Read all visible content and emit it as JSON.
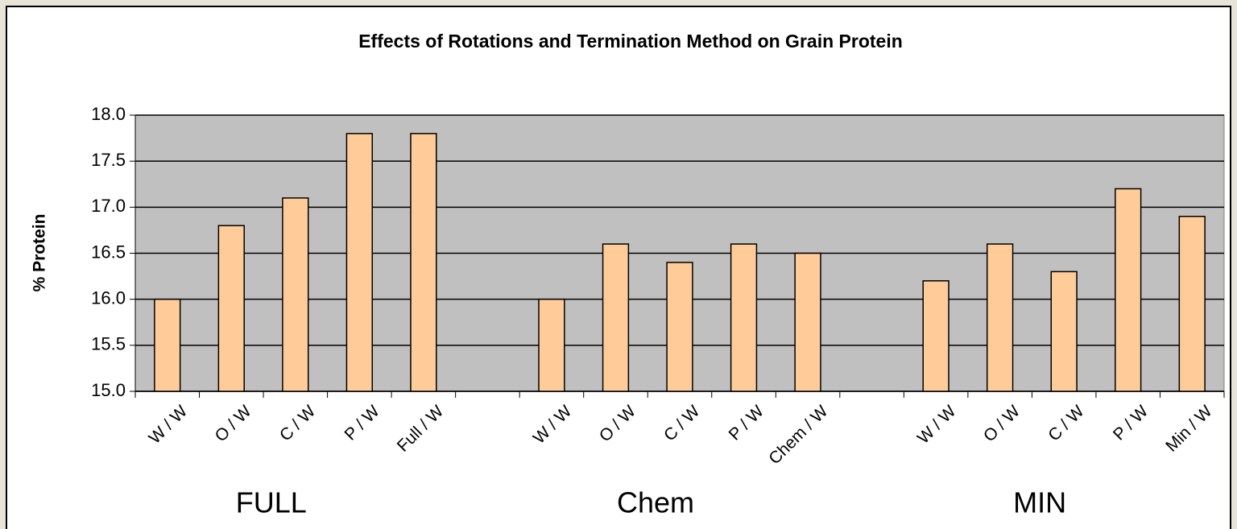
{
  "chart_data": {
    "type": "bar",
    "title": "Effects of Rotations and Termination Method on Grain Protein",
    "ylabel": "% Protein",
    "categories": [
      "W / W",
      "O / W",
      "C / W",
      "P / W",
      "Full / W",
      null,
      "W / W",
      "O / W",
      "C / W",
      "P / W",
      "Chem / W",
      null,
      "W / W",
      "O / W",
      "C / W",
      "P / W",
      "Min / W"
    ],
    "values": [
      16.0,
      16.8,
      17.1,
      17.8,
      17.8,
      null,
      16.0,
      16.6,
      16.4,
      16.6,
      16.5,
      null,
      16.2,
      16.6,
      16.3,
      17.2,
      16.9
    ],
    "groups": [
      "FULL",
      "Chem",
      "MIN"
    ],
    "color": "#ffcc99",
    "ylim": [
      15,
      18
    ],
    "yticks": [
      {
        "value": 15,
        "label": "15.0"
      },
      {
        "value": 15.5,
        "label": "15.5"
      },
      {
        "value": 16,
        "label": "16.0"
      },
      {
        "value": 16.5,
        "label": "16.5"
      },
      {
        "value": 17,
        "label": "17.0"
      },
      {
        "value": 17.5,
        "label": "17.5"
      },
      {
        "value": 18,
        "label": "18.0"
      }
    ],
    "grid": true
  }
}
